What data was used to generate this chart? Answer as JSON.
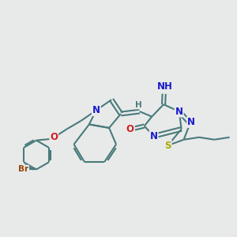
{
  "bg_color": "#e8eaea",
  "bond_color": "#4a7a7a",
  "bond_width": 1.5,
  "atom_colors": {
    "N": "#1a1acc",
    "S": "#aaaa00",
    "O": "#cc2020",
    "Br": "#994400",
    "H": "#4a7a7a",
    "C": "#4a7a7a"
  },
  "font_size": 8.5,
  "fig_size": [
    3.0,
    3.0
  ],
  "dpi": 100
}
